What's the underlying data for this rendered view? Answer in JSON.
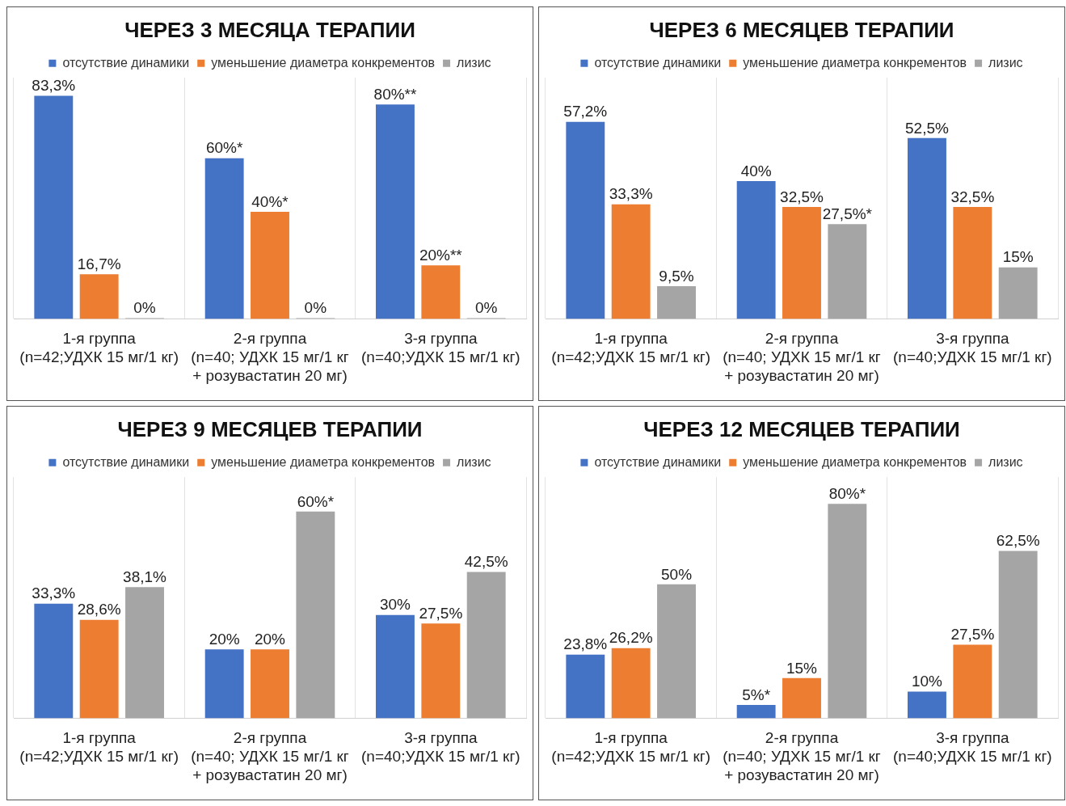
{
  "chart_data": [
    {
      "type": "bar",
      "title": "ЧЕРЕЗ 3 МЕСЯЦА ТЕРАПИИ",
      "categories": [
        "1-я группа\n(n=42;УДХК 15 мг/1 кг)",
        "2-я группа\n(n=40; УДХК 15 мг/1 кг\n+ розувастатин 20 мг)",
        "3-я группа\n(n=40;УДХК 15 мг/1 кг)"
      ],
      "grid": "x",
      "legend": "top",
      "series": [
        {
          "name": "отсутствие динамики",
          "color": "#4472c4",
          "values": [
            83.3,
            60,
            80
          ],
          "value_labels": [
            "83,3%",
            "60%*",
            "80%**"
          ]
        },
        {
          "name": "уменьшение диаметра конкрементов",
          "color": "#ed7d31",
          "values": [
            16.7,
            40,
            20
          ],
          "value_labels": [
            "16,7%",
            "40%*",
            "20%**"
          ]
        },
        {
          "name": "лизис",
          "color": "#a5a5a5",
          "values": [
            0,
            0,
            0
          ],
          "value_labels": [
            "0%",
            "0%",
            "0%"
          ]
        }
      ]
    },
    {
      "type": "bar",
      "title": "ЧЕРЕЗ 6 МЕСЯЦЕВ ТЕРАПИИ",
      "categories": [
        "1-я группа\n(n=42;УДХК 15 мг/1 кг)",
        "2-я группа\n(n=40; УДХК 15 мг/1 кг\n+ розувастатин 20 мг)",
        "3-я группа\n(n=40;УДХК 15 мг/1 кг)"
      ],
      "grid": "x",
      "legend": "top",
      "series": [
        {
          "name": "отсутствие динамики",
          "color": "#4472c4",
          "values": [
            57.2,
            40,
            52.5
          ],
          "value_labels": [
            "57,2%",
            "40%",
            "52,5%"
          ]
        },
        {
          "name": "уменьшение диаметра конкрементов",
          "color": "#ed7d31",
          "values": [
            33.3,
            32.5,
            32.5
          ],
          "value_labels": [
            "33,3%",
            "32,5%",
            "32,5%"
          ]
        },
        {
          "name": "лизис",
          "color": "#a5a5a5",
          "values": [
            9.5,
            27.5,
            15
          ],
          "value_labels": [
            "9,5%",
            "27,5%*",
            "15%"
          ]
        }
      ]
    },
    {
      "type": "bar",
      "title": "ЧЕРЕЗ 9 МЕСЯЦЕВ ТЕРАПИИ",
      "categories": [
        "1-я группа\n(n=42;УДХК 15 мг/1 кг)",
        "2-я группа\n(n=40; УДХК 15 мг/1 кг\n+ розувастатин 20 мг)",
        "3-я группа\n(n=40;УДХК 15 мг/1 кг)"
      ],
      "grid": "x",
      "legend": "top",
      "series": [
        {
          "name": "отсутствие динамики",
          "color": "#4472c4",
          "values": [
            33.3,
            20,
            30
          ],
          "value_labels": [
            "33,3%",
            "20%",
            "30%"
          ]
        },
        {
          "name": "уменьшение диаметра конкрементов",
          "color": "#ed7d31",
          "values": [
            28.6,
            20,
            27.5
          ],
          "value_labels": [
            "28,6%",
            "20%",
            "27,5%"
          ]
        },
        {
          "name": "лизис",
          "color": "#a5a5a5",
          "values": [
            38.1,
            60,
            42.5
          ],
          "value_labels": [
            "38,1%",
            "60%*",
            "42,5%"
          ]
        }
      ]
    },
    {
      "type": "bar",
      "title": "ЧЕРЕЗ 12 МЕСЯЦЕВ ТЕРАПИИ",
      "categories": [
        "1-я группа\n(n=42;УДХК 15 мг/1 кг)",
        "2-я группа\n(n=40; УДХК 15 мг/1 кг\n+ розувастатин 20 мг)",
        "3-я группа\n(n=40;УДХК 15 мг/1 кг)"
      ],
      "grid": "x",
      "legend": "top",
      "series": [
        {
          "name": "отсутствие динамики",
          "color": "#4472c4",
          "values": [
            23.8,
            5,
            10
          ],
          "value_labels": [
            "23,8%",
            "5%*",
            "10%"
          ]
        },
        {
          "name": "уменьшение диаметра конкрементов",
          "color": "#ed7d31",
          "values": [
            26.2,
            15,
            27.5
          ],
          "value_labels": [
            "26,2%",
            "15%",
            "27,5%"
          ]
        },
        {
          "name": "лизис",
          "color": "#a5a5a5",
          "values": [
            50,
            80,
            62.5
          ],
          "value_labels": [
            "50%",
            "80%*",
            "62,5%"
          ]
        }
      ]
    }
  ]
}
